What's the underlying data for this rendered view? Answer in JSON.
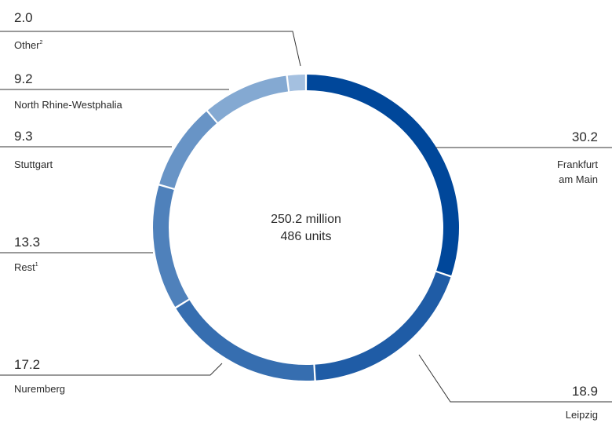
{
  "chart_data": {
    "type": "pie",
    "center_text": [
      "250.2 million",
      "486 units"
    ],
    "slices": [
      {
        "label_lines": [
          "Frankfurt",
          "am Main"
        ],
        "footnote": "",
        "value": 30.2,
        "value_text": "30.2",
        "color": "#00479A"
      },
      {
        "label_lines": [
          "Leipzig"
        ],
        "footnote": "",
        "value": 18.9,
        "value_text": "18.9",
        "color": "#1F5CA6"
      },
      {
        "label_lines": [
          "Nuremberg"
        ],
        "footnote": "",
        "value": 17.2,
        "value_text": "17.2",
        "color": "#366EB0"
      },
      {
        "label_lines": [
          "Rest"
        ],
        "footnote": "1",
        "value": 13.3,
        "value_text": "13.3",
        "color": "#4F81BB"
      },
      {
        "label_lines": [
          "Stuttgart"
        ],
        "footnote": "",
        "value": 9.3,
        "value_text": "9.3",
        "color": "#6894C6"
      },
      {
        "label_lines": [
          "North Rhine-Westphalia"
        ],
        "footnote": "",
        "value": 9.2,
        "value_text": "9.2",
        "color": "#84A9D2"
      },
      {
        "label_lines": [
          "Other"
        ],
        "footnote": "2",
        "value": 2.0,
        "value_text": "2.0",
        "color": "#A4C0E0"
      }
    ]
  }
}
